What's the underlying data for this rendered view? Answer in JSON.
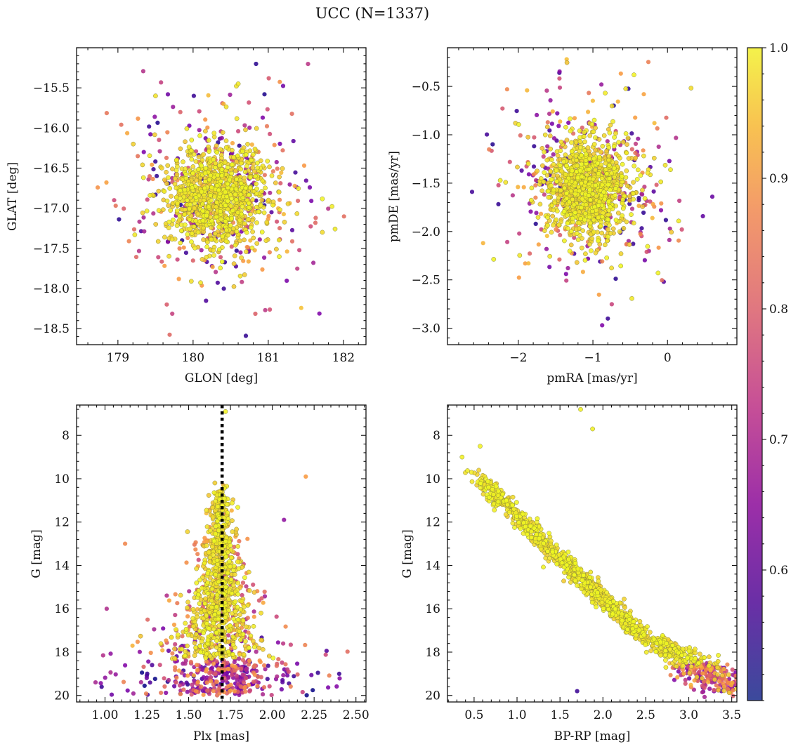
{
  "figure": {
    "title": "UCC (N=1337)"
  },
  "colorbar": {
    "colormap": "plasma",
    "min": 0.5,
    "max": 1.0,
    "ticks": [
      1.0,
      0.9,
      0.8,
      0.7,
      0.6
    ],
    "tick_labels": [
      "1.0",
      "0.9",
      "0.8",
      "0.7",
      "0.6"
    ]
  },
  "chart_data": [
    {
      "id": "glon-glat",
      "type": "scatter",
      "title": "",
      "xlabel": "GLON [deg]",
      "ylabel": "GLAT [deg]",
      "xlim": [
        178.45,
        182.3
      ],
      "ylim": [
        -18.7,
        -15.0
      ],
      "xticks": [
        179,
        180,
        181,
        182
      ],
      "xtick_labels": [
        "179",
        "180",
        "181",
        "182"
      ],
      "yticks": [
        -15.5,
        -16.0,
        -16.5,
        -17.0,
        -17.5,
        -18.0,
        -18.5
      ],
      "ytick_labels": [
        "−15.5",
        "−16.0",
        "−16.5",
        "−17.0",
        "−17.5",
        "−18.0",
        "−18.5"
      ],
      "yinverted": false,
      "points_note": "N=1337 members; dense core near (180.3, -16.85), spread ~0.45 deg; colour = membership probability",
      "sample_points": [
        {
          "x": 180.35,
          "y": -16.85,
          "p": 0.99
        },
        {
          "x": 180.6,
          "y": -15.45,
          "p": 0.98
        },
        {
          "x": 180.96,
          "y": -18.27,
          "p": 0.72
        },
        {
          "x": 179.5,
          "y": -15.6,
          "p": 0.97
        },
        {
          "x": 181.72,
          "y": -17.3,
          "p": 0.96
        },
        {
          "x": 178.95,
          "y": -16.9,
          "p": 0.75
        },
        {
          "x": 180.01,
          "y": -15.6,
          "p": 0.55
        },
        {
          "x": 180.95,
          "y": -15.58,
          "p": 0.52
        },
        {
          "x": 181.6,
          "y": -17.68,
          "p": 0.68
        },
        {
          "x": 179.65,
          "y": -18.2,
          "p": 0.78
        }
      ]
    },
    {
      "id": "pm",
      "type": "scatter",
      "title": "",
      "xlabel": "pmRA [mas/yr]",
      "ylabel": "pmDE [mas/yr]",
      "xlim": [
        -2.95,
        0.93
      ],
      "ylim": [
        -3.17,
        -0.1
      ],
      "xticks": [
        -2,
        -1,
        0
      ],
      "xtick_labels": [
        "−2",
        "−1",
        "0"
      ],
      "yticks": [
        -0.5,
        -1.0,
        -1.5,
        -2.0,
        -2.5,
        -3.0
      ],
      "ytick_labels": [
        "−0.5",
        "−1.0",
        "−1.5",
        "−2.0",
        "−2.5",
        "−3.0"
      ],
      "yinverted": false,
      "points_note": "dense core near (-1.08, -1.55)",
      "sample_points": [
        {
          "x": -1.05,
          "y": -1.55,
          "p": 0.99
        },
        {
          "x": -1.45,
          "y": -0.36,
          "p": 0.55
        },
        {
          "x": -0.45,
          "y": -0.38,
          "p": 0.99
        },
        {
          "x": -0.8,
          "y": -2.9,
          "p": 0.55
        },
        {
          "x": 0.6,
          "y": -1.64,
          "p": 0.6
        },
        {
          "x": -2.62,
          "y": -1.59,
          "p": 0.56
        },
        {
          "x": -2.15,
          "y": -0.53,
          "p": 0.85
        },
        {
          "x": -0.05,
          "y": -2.52,
          "p": 0.58
        }
      ]
    },
    {
      "id": "plx-g",
      "type": "scatter",
      "title": "",
      "xlabel": "Plx [mas]",
      "ylabel": "G [mag]",
      "xlim": [
        0.83,
        2.56
      ],
      "ylim": [
        20.3,
        6.6
      ],
      "xticks": [
        1.0,
        1.25,
        1.5,
        1.75,
        2.0,
        2.25,
        2.5
      ],
      "xtick_labels": [
        "1.00",
        "1.25",
        "1.50",
        "1.75",
        "2.00",
        "2.25",
        "2.50"
      ],
      "yticks": [
        8,
        10,
        12,
        14,
        16,
        18,
        20
      ],
      "ytick_labels": [
        "8",
        "10",
        "12",
        "14",
        "16",
        "18",
        "20"
      ],
      "yinverted": true,
      "reference_line": {
        "x": 1.7,
        "style": "dotted",
        "color": "#000000"
      },
      "points_note": "members centred on Plx~1.68; scatter grows toward faint G",
      "sample_points": [
        {
          "x": 1.72,
          "y": 6.9,
          "p": 0.99
        },
        {
          "x": 1.12,
          "y": 13.0,
          "p": 0.85
        },
        {
          "x": 1.01,
          "y": 16.0,
          "p": 0.7
        },
        {
          "x": 2.2,
          "y": 9.9,
          "p": 0.88
        },
        {
          "x": 2.07,
          "y": 11.9,
          "p": 0.65
        },
        {
          "x": 0.98,
          "y": 19.6,
          "p": 0.55
        },
        {
          "x": 2.4,
          "y": 19.0,
          "p": 0.55
        }
      ]
    },
    {
      "id": "cmd",
      "type": "scatter",
      "title": "",
      "xlabel": "BP-RP [mag]",
      "ylabel": "G [mag]",
      "xlim": [
        0.19,
        3.56
      ],
      "ylim": [
        20.3,
        6.6
      ],
      "xticks": [
        0.5,
        1.0,
        1.5,
        2.0,
        2.5,
        3.0,
        3.5
      ],
      "xtick_labels": [
        "0.5",
        "1.0",
        "1.5",
        "2.0",
        "2.5",
        "3.0",
        "3.5"
      ],
      "yticks": [
        8,
        10,
        12,
        14,
        16,
        18,
        20
      ],
      "ytick_labels": [
        "8",
        "10",
        "12",
        "14",
        "16",
        "18",
        "20"
      ],
      "yinverted": true,
      "points_note": "main sequence from (0.35, 9.0) down to (3.1, 19.8)",
      "sample_points": [
        {
          "x": 1.74,
          "y": 6.8,
          "p": 0.99
        },
        {
          "x": 1.88,
          "y": 7.7,
          "p": 0.99
        },
        {
          "x": 0.36,
          "y": 9.0,
          "p": 0.99
        },
        {
          "x": 0.57,
          "y": 8.5,
          "p": 0.99
        },
        {
          "x": 1.7,
          "y": 19.8,
          "p": 0.55
        },
        {
          "x": 3.38,
          "y": 19.8,
          "p": 0.6
        }
      ]
    }
  ]
}
